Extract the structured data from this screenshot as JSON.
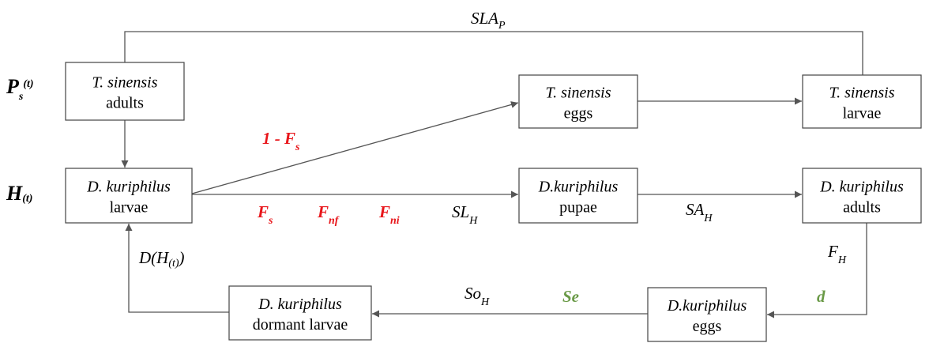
{
  "rows": [
    {
      "text": "P",
      "sub": "s",
      "sup": "(t)"
    },
    {
      "text": "H",
      "sub": "(t)"
    }
  ],
  "nodes": [
    {
      "lines": [
        "T. sinensis",
        "adults"
      ]
    },
    {
      "lines": [
        "T. sinensis",
        "eggs"
      ]
    },
    {
      "lines": [
        "T. sinensis",
        "larvae"
      ]
    },
    {
      "lines": [
        "D. kuriphilus",
        "larvae"
      ]
    },
    {
      "lines": [
        "D.kuriphilus",
        "pupae"
      ]
    },
    {
      "lines": [
        "D. kuriphilus",
        "adults"
      ]
    },
    {
      "lines": [
        "D.kuriphilus",
        "eggs"
      ]
    },
    {
      "lines": [
        "D. kuriphilus",
        "dormant larvae"
      ]
    }
  ],
  "edge_labels": [
    {
      "text": "SLA",
      "sub": "P"
    },
    {
      "text": "1 - F",
      "sub": "s"
    },
    {
      "text": "F",
      "sub": "s"
    },
    {
      "text": "F",
      "sub": "nf"
    },
    {
      "text": "F",
      "sub": "ni"
    },
    {
      "text": "SL",
      "sub": "H"
    },
    {
      "text": "SA",
      "sub": "H"
    },
    {
      "text": "D(H",
      "sub": "(t)",
      "tail": ")"
    },
    {
      "text": "F",
      "sub": "H"
    },
    {
      "text": "So",
      "sub": "H"
    },
    {
      "text": "Se"
    },
    {
      "text": "d"
    }
  ]
}
